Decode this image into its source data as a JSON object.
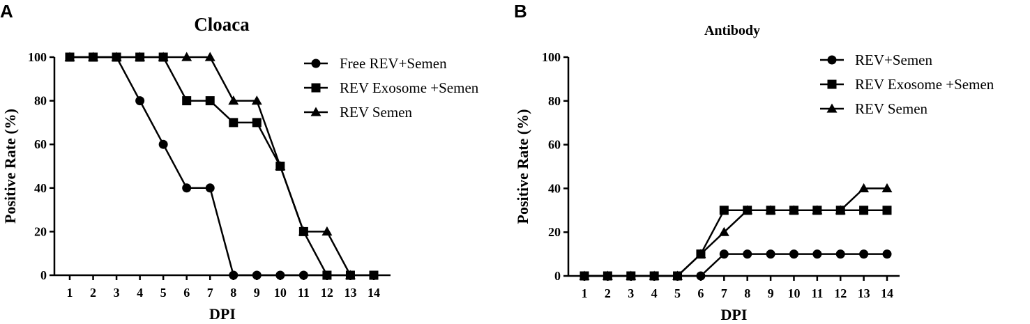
{
  "chart_data": [
    {
      "panel": "A",
      "type": "line",
      "title": "Cloaca",
      "xlabel": "DPI",
      "ylabel": "Positive Rate (%)",
      "x": [
        1,
        2,
        3,
        4,
        5,
        6,
        7,
        8,
        9,
        10,
        11,
        12,
        13,
        14
      ],
      "xlim": [
        1,
        14
      ],
      "ylim": [
        0,
        100
      ],
      "yticks": [
        0,
        20,
        40,
        60,
        80,
        100
      ],
      "grid": false,
      "legend_position": "top-right",
      "series": [
        {
          "name": "Free REV+Semen",
          "marker": "circle",
          "values": [
            100,
            100,
            100,
            80,
            60,
            40,
            40,
            0,
            0,
            0,
            0,
            0,
            null,
            null
          ]
        },
        {
          "name": "REV Exosome +Semen",
          "marker": "square",
          "values": [
            100,
            100,
            100,
            100,
            100,
            80,
            80,
            70,
            70,
            50,
            20,
            0,
            0,
            0
          ]
        },
        {
          "name": "REV Semen",
          "marker": "triangle",
          "values": [
            100,
            100,
            100,
            100,
            100,
            100,
            100,
            80,
            80,
            50,
            20,
            20,
            0,
            null
          ]
        }
      ]
    },
    {
      "panel": "B",
      "type": "line",
      "title": "Antibody",
      "xlabel": "DPI",
      "ylabel": "Positive Rate (%)",
      "x": [
        1,
        2,
        3,
        4,
        5,
        6,
        7,
        8,
        9,
        10,
        11,
        12,
        13,
        14
      ],
      "xlim": [
        1,
        14
      ],
      "ylim": [
        0,
        100
      ],
      "yticks": [
        0,
        20,
        40,
        60,
        80,
        100
      ],
      "grid": false,
      "legend_position": "top-right",
      "series": [
        {
          "name": "REV+Semen",
          "marker": "circle",
          "values": [
            0,
            0,
            0,
            0,
            0,
            0,
            10,
            10,
            10,
            10,
            10,
            10,
            10,
            10
          ]
        },
        {
          "name": "REV Exosome +Semen",
          "marker": "square",
          "values": [
            0,
            0,
            0,
            0,
            0,
            10,
            30,
            30,
            30,
            30,
            30,
            30,
            30,
            30
          ]
        },
        {
          "name": "REV Semen",
          "marker": "triangle",
          "values": [
            0,
            0,
            0,
            0,
            0,
            10,
            20,
            30,
            30,
            30,
            30,
            30,
            40,
            40
          ]
        }
      ]
    }
  ]
}
